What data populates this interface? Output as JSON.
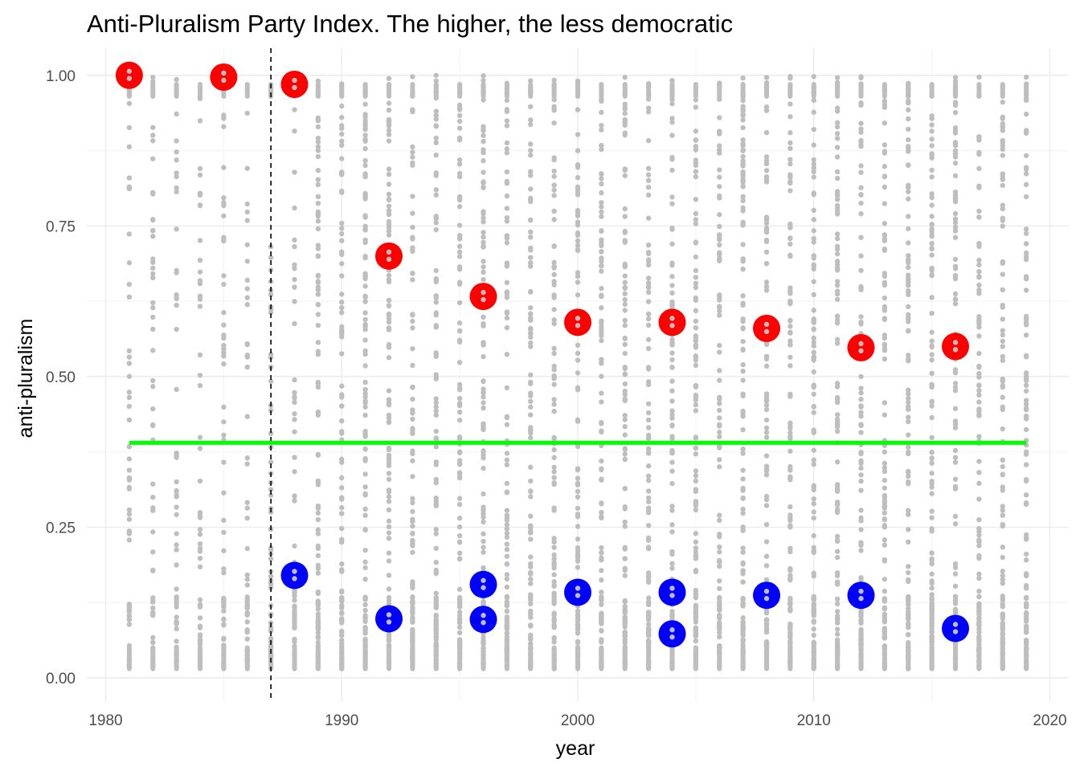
{
  "chart_data": {
    "type": "scatter",
    "title": "Anti-Pluralism Party Index. The higher, the less democratic",
    "xlabel": "year",
    "ylabel": "anti-pluralism",
    "xlim": [
      1979.2,
      2020.8
    ],
    "ylim": [
      -0.04,
      1.045
    ],
    "x_ticks": [
      1980,
      1990,
      2000,
      2010,
      2020
    ],
    "x_tick_labels": [
      "1980",
      "1990",
      "2000",
      "2010",
      "2020"
    ],
    "y_ticks": [
      0.0,
      0.25,
      0.5,
      0.75,
      1.0
    ],
    "y_tick_labels": [
      "0.00",
      "0.25",
      "0.50",
      "0.75",
      "1.00"
    ],
    "grid": true,
    "legend": "none",
    "colors": {
      "background_points": "#bebebe",
      "max_points": "#ff0000",
      "min_points": "#0000ff",
      "reference_line": "#00ff00",
      "vertical_line": "#000000",
      "grid_major": "#ebebeb",
      "grid_minor": "#f4f4f4"
    },
    "background_years": [
      1981,
      1982,
      1983,
      1984,
      1985,
      1986,
      1987,
      1988,
      1989,
      1990,
      1991,
      1992,
      1993,
      1994,
      1995,
      1996,
      1997,
      1998,
      1999,
      2000,
      2001,
      2002,
      2003,
      2004,
      2005,
      2006,
      2007,
      2008,
      2009,
      2010,
      2011,
      2012,
      2013,
      2014,
      2015,
      2016,
      2017,
      2018,
      2019
    ],
    "series": [
      {
        "role": "max",
        "points": [
          {
            "x": 1981,
            "y": 1.0
          },
          {
            "x": 1985,
            "y": 0.997
          },
          {
            "x": 1988,
            "y": 0.985
          },
          {
            "x": 1992,
            "y": 0.7
          },
          {
            "x": 1996,
            "y": 0.633
          },
          {
            "x": 2000,
            "y": 0.59
          },
          {
            "x": 2004,
            "y": 0.59
          },
          {
            "x": 2008,
            "y": 0.58
          },
          {
            "x": 2012,
            "y": 0.548
          },
          {
            "x": 2016,
            "y": 0.55
          }
        ]
      },
      {
        "role": "min",
        "points": [
          {
            "x": 1988,
            "y": 0.17
          },
          {
            "x": 1992,
            "y": 0.098
          },
          {
            "x": 1996,
            "y": 0.155
          },
          {
            "x": 1996,
            "y": 0.097
          },
          {
            "x": 2000,
            "y": 0.142
          },
          {
            "x": 2004,
            "y": 0.142
          },
          {
            "x": 2004,
            "y": 0.073
          },
          {
            "x": 2008,
            "y": 0.137
          },
          {
            "x": 2012,
            "y": 0.137
          },
          {
            "x": 2016,
            "y": 0.082
          }
        ]
      }
    ],
    "hline": {
      "y": 0.39,
      "x_from": 1981,
      "x_to": 2019
    },
    "vline": {
      "x": 1987,
      "style": "dashed"
    }
  }
}
